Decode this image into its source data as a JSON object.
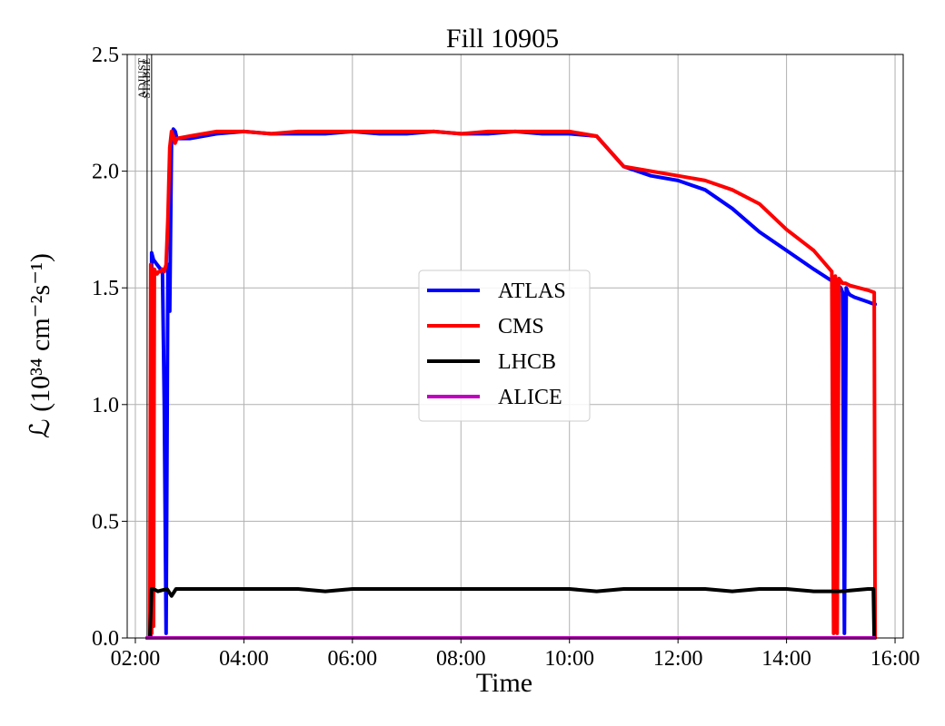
{
  "chart_data": {
    "type": "line",
    "title": "Fill 10905",
    "xlabel": "Time",
    "ylabel": "ℒ (10³⁴ cm⁻²s⁻¹)",
    "xlim": [
      "02:00",
      "16:00"
    ],
    "ylim": [
      0,
      2.5
    ],
    "xticks": [
      "02:00",
      "04:00",
      "06:00",
      "08:00",
      "10:00",
      "12:00",
      "14:00",
      "16:00"
    ],
    "yticks": [
      "0.0",
      "0.5",
      "1.0",
      "1.5",
      "2.0",
      "2.5"
    ],
    "grid": true,
    "legend_position": "center",
    "phase_markers": [
      {
        "label": "ADJUST",
        "time": "02:13"
      },
      {
        "label": "STABLE",
        "time": "02:18"
      }
    ],
    "series": [
      {
        "name": "ATLAS",
        "color": "#0000ff",
        "x": [
          "02:13",
          "02:17",
          "02:18",
          "02:20",
          "02:22",
          "02:24",
          "02:26",
          "02:28",
          "02:30",
          "02:32",
          "02:34",
          "02:36",
          "02:38",
          "02:40",
          "02:42",
          "02:44",
          "02:46",
          "03:00",
          "03:30",
          "04:00",
          "04:30",
          "05:00",
          "05:30",
          "06:00",
          "06:30",
          "07:00",
          "07:30",
          "08:00",
          "08:30",
          "09:00",
          "09:30",
          "10:00",
          "10:30",
          "11:00",
          "11:30",
          "12:00",
          "12:30",
          "13:00",
          "13:30",
          "14:00",
          "14:30",
          "14:50",
          "15:00",
          "15:02",
          "15:04",
          "15:06",
          "15:08",
          "15:10",
          "15:15",
          "15:30",
          "15:37",
          "15:38"
        ],
        "y": [
          0.0,
          0.0,
          1.65,
          1.62,
          1.61,
          1.6,
          1.59,
          1.58,
          1.57,
          1.0,
          0.02,
          1.6,
          1.4,
          2.15,
          2.18,
          2.17,
          2.14,
          2.14,
          2.16,
          2.17,
          2.16,
          2.16,
          2.16,
          2.17,
          2.16,
          2.16,
          2.17,
          2.16,
          2.16,
          2.17,
          2.16,
          2.16,
          2.15,
          2.02,
          1.98,
          1.96,
          1.92,
          1.84,
          1.74,
          1.66,
          1.58,
          1.53,
          1.5,
          1.48,
          0.02,
          1.5,
          1.48,
          1.47,
          1.46,
          1.44,
          1.43,
          1.43
        ]
      },
      {
        "name": "CMS",
        "color": "#ff0000",
        "x": [
          "02:13",
          "02:16",
          "02:17",
          "02:18",
          "02:19",
          "02:20",
          "02:21",
          "02:22",
          "02:24",
          "02:26",
          "02:28",
          "02:30",
          "02:32",
          "02:34",
          "02:36",
          "02:38",
          "02:40",
          "02:42",
          "02:44",
          "02:46",
          "03:00",
          "03:30",
          "04:00",
          "04:30",
          "05:00",
          "05:30",
          "06:00",
          "06:30",
          "07:00",
          "07:30",
          "08:00",
          "08:30",
          "09:00",
          "09:30",
          "10:00",
          "10:30",
          "11:00",
          "11:30",
          "12:00",
          "12:30",
          "13:00",
          "13:30",
          "14:00",
          "14:30",
          "14:50",
          "14:52",
          "14:54",
          "14:56",
          "14:58",
          "15:00",
          "15:02",
          "15:05",
          "15:10",
          "15:20",
          "15:30",
          "15:37",
          "15:38"
        ],
        "y": [
          0.0,
          0.0,
          1.6,
          0.02,
          1.58,
          0.05,
          1.58,
          1.57,
          1.56,
          1.57,
          1.57,
          1.58,
          1.57,
          1.6,
          1.8,
          2.1,
          2.17,
          2.15,
          2.12,
          2.14,
          2.15,
          2.17,
          2.17,
          2.16,
          2.17,
          2.17,
          2.17,
          2.17,
          2.17,
          2.17,
          2.16,
          2.17,
          2.17,
          2.17,
          2.17,
          2.15,
          2.02,
          2.0,
          1.98,
          1.96,
          1.92,
          1.86,
          1.75,
          1.66,
          1.57,
          0.02,
          1.55,
          0.02,
          1.54,
          1.53,
          1.52,
          1.52,
          1.51,
          1.5,
          1.49,
          1.48,
          0.0
        ]
      },
      {
        "name": "LHCB",
        "color": "#000000",
        "x": [
          "02:13",
          "02:16",
          "02:18",
          "02:20",
          "02:25",
          "02:35",
          "02:40",
          "02:45",
          "03:00",
          "03:30",
          "04:00",
          "04:30",
          "05:00",
          "05:30",
          "06:00",
          "06:30",
          "07:00",
          "07:30",
          "08:00",
          "08:30",
          "09:00",
          "09:30",
          "10:00",
          "10:30",
          "11:00",
          "11:30",
          "12:00",
          "12:30",
          "13:00",
          "13:30",
          "14:00",
          "14:30",
          "15:00",
          "15:30",
          "15:36",
          "15:37"
        ],
        "y": [
          0.0,
          0.0,
          0.21,
          0.21,
          0.2,
          0.21,
          0.18,
          0.21,
          0.21,
          0.21,
          0.21,
          0.21,
          0.21,
          0.2,
          0.21,
          0.21,
          0.21,
          0.21,
          0.21,
          0.21,
          0.21,
          0.21,
          0.21,
          0.2,
          0.21,
          0.21,
          0.21,
          0.21,
          0.2,
          0.21,
          0.21,
          0.2,
          0.2,
          0.21,
          0.21,
          0.0
        ]
      },
      {
        "name": "ALICE",
        "color": "#bf00bf",
        "x": [
          "02:13",
          "15:37"
        ],
        "y": [
          0.0,
          0.0
        ]
      }
    ]
  }
}
